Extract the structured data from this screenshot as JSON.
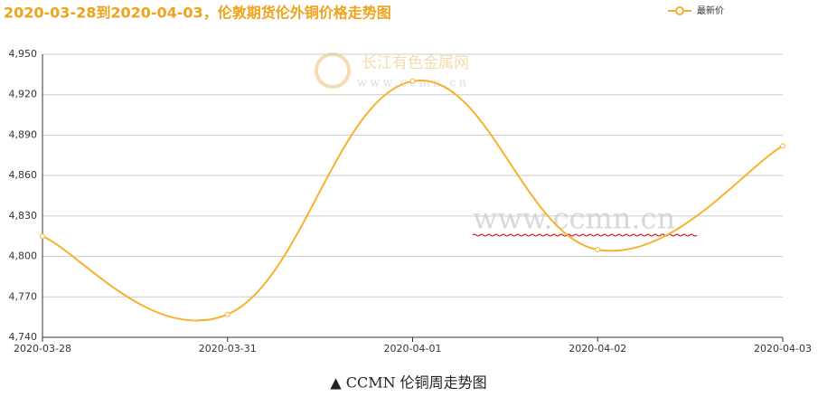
{
  "chart_data": {
    "type": "line",
    "title": "2020-03-28到2020-04-03，伦敦期货伦外铜价格走势图",
    "categories": [
      "2020-03-28",
      "2020-03-31",
      "2020-04-01",
      "2020-04-02",
      "2020-04-03"
    ],
    "series": [
      {
        "name": "最新价",
        "color": "#f7b12c",
        "values": [
          4815,
          4757,
          4930,
          4805,
          4882
        ]
      }
    ],
    "ylim": [
      4740,
      4950
    ],
    "yticks": [
      {
        "value": 4740,
        "label": "4,740"
      },
      {
        "value": 4770,
        "label": "4,770"
      },
      {
        "value": 4800,
        "label": "4,800"
      },
      {
        "value": 4830,
        "label": "4,830"
      },
      {
        "value": 4860,
        "label": "4,860"
      },
      {
        "value": 4890,
        "label": "4,890"
      },
      {
        "value": 4920,
        "label": "4,920"
      },
      {
        "value": 4950,
        "label": "4,950"
      }
    ],
    "grid": true,
    "legend": "top-right",
    "watermark": [
      "长江有色金属网",
      "www.ccmn.cn",
      "www.ccmn.cn"
    ],
    "caption": "▲ CCMN 伦铜周走势图"
  }
}
